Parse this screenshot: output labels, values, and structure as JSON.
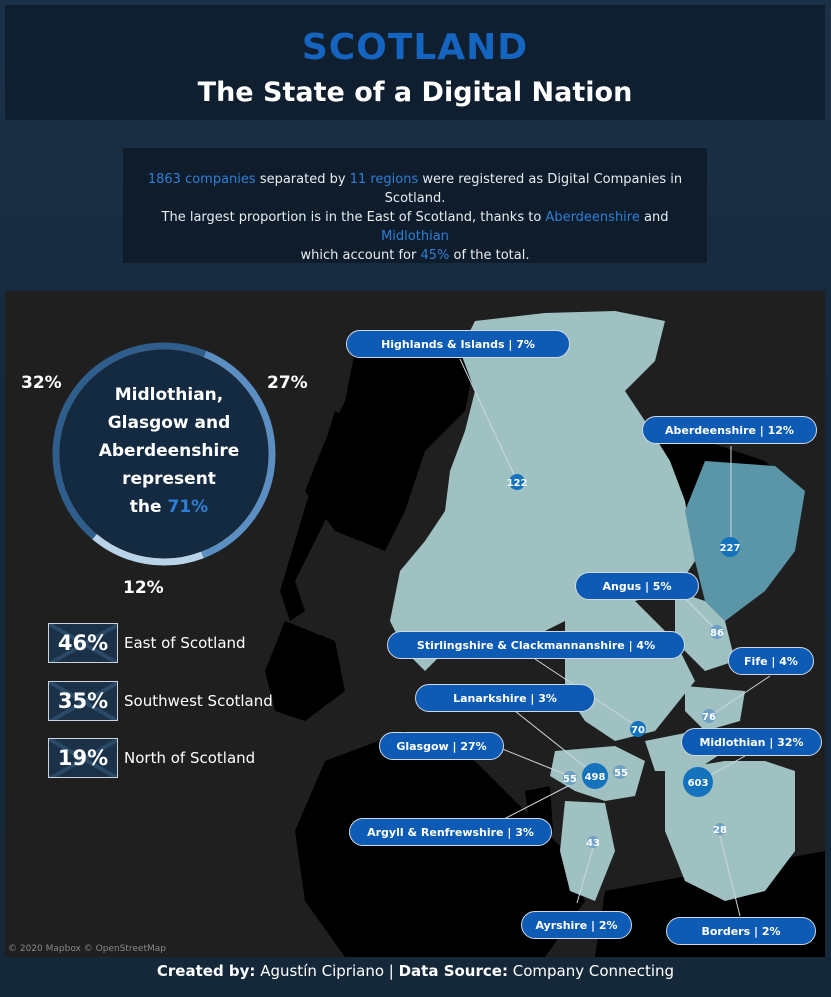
{
  "header": {
    "title": "SCOTLAND",
    "subtitle": "The State of a Digital Nation"
  },
  "intro": {
    "companies": "1863 companies",
    "t1": " separated by ",
    "regions": "11 regions",
    "t2": " were registered as Digital Companies in Scotland.",
    "t3": "The largest proportion is in the East of Scotland, thanks to ",
    "aberdeenshire": "Aberdeenshire",
    "t4": " and ",
    "midlothian": "Midlothian",
    "t5": " which account for ",
    "pct": "45%",
    "t6": " of the total."
  },
  "donut": {
    "line1": "Midlothian,",
    "line2": "Glasgow and",
    "line3": "Aberdeenshire",
    "line4": "represent",
    "line5_prefix": "the ",
    "line5_pct": "71%",
    "labels": {
      "midlothian": "32%",
      "glasgow": "27%",
      "aberdeenshire": "12%"
    },
    "segments": [
      {
        "name": "Midlothian",
        "share": 32,
        "color": "#2f5d8c"
      },
      {
        "name": "Glasgow",
        "share": 27,
        "color": "#5b8fc4"
      },
      {
        "name": "Aberdeenshire",
        "share": 12,
        "color": "#b9d3ea"
      }
    ]
  },
  "region_groups": [
    {
      "pct": "46%",
      "name": "East of Scotland"
    },
    {
      "pct": "35%",
      "name": "Southwest Scotland"
    },
    {
      "pct": "19%",
      "name": "North of Scotland"
    }
  ],
  "map": {
    "attribution": "© 2020 Mapbox © OpenStreetMap",
    "labels": {
      "highlands": "Highlands & Islands | 7%",
      "aberdeenshire": "Aberdeenshire | 12%",
      "angus": "Angus | 5%",
      "stirlingshire": "Stirlingshire & Clackmannanshire | 4%",
      "fife": "Fife | 4%",
      "lanarkshire": "Lanarkshire | 3%",
      "glasgow": "Glasgow | 27%",
      "midlothian": "Midlothian | 32%",
      "argyll": "Argyll & Renfrewshire | 3%",
      "ayrshire": "Ayrshire | 2%",
      "borders": "Borders | 2%"
    },
    "counts": {
      "highlands": "122",
      "aberdeenshire": "227",
      "angus": "86",
      "stirlingshire": "70",
      "fife": "76",
      "lanarkshire": "55",
      "glasgow": "498",
      "midlothian": "603",
      "argyll": "55",
      "ayrshire": "43",
      "borders": "28"
    },
    "colors": {
      "land": "#9fc1c1",
      "land_dark": "#000000",
      "aberdeen": "#5b95a8",
      "marker": "#1572bd"
    }
  },
  "footer": {
    "created_label": "Created by:",
    "author": " Agustín Cipriano | ",
    "source_label": "Data Source:",
    "source": " Company Connecting"
  }
}
